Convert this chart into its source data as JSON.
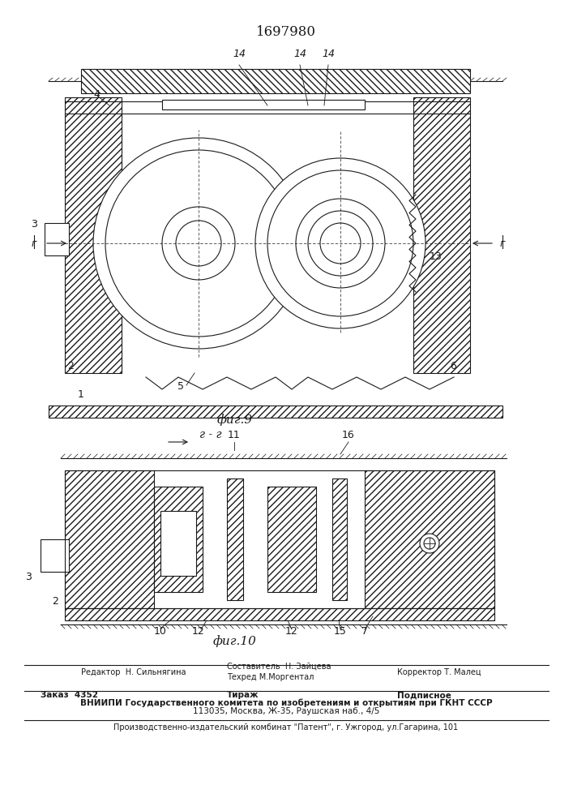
{
  "patent_number": "1697980",
  "fig9_label": "фиг.9",
  "fig10_label": "фиг.10",
  "section_label": "г - г",
  "editor_line": "Редактор  Н. Сильнягина",
  "composer_line": "Составитель  Н. Зайцева",
  "techred_line": "Техред М.Моргентал",
  "corrector_line": "Корректор Т. Малец",
  "order_line": "Заказ  4352",
  "tirazh_line": "Тираж",
  "podpisnoe_line": "Подписное",
  "vniipи_line": "ВНИИПИ Государственного комитета по изобретениям и открытиям при ГКНТ СССР",
  "address_line": "113035, Москва, Ж-35, Раушская наб., 4/5",
  "factory_line": "Производственно-издательский комбинат \"Патент\", г. Ужгород, ул.Гагарина, 101",
  "bg_color": "#ffffff",
  "line_color": "#1a1a1a",
  "hatch_color": "#1a1a1a"
}
